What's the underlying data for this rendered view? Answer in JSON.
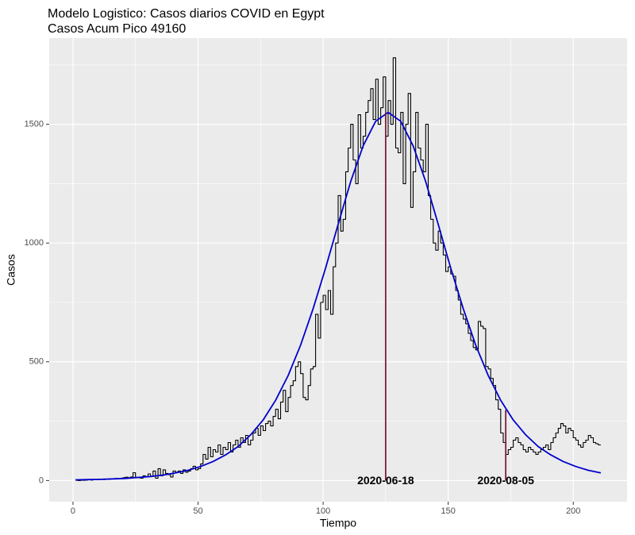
{
  "chart_data": {
    "type": "line",
    "title": "Modelo Logistico: Casos diarios COVID en Egypt",
    "subtitle": "Casos Acum Pico 49160",
    "x_label": "Tiempo",
    "y_label": "Casos",
    "xlim": [
      -9.5,
      221.5
    ],
    "ylim": [
      -89,
      1863
    ],
    "xticks": [
      0,
      50,
      100,
      150,
      200
    ],
    "yticks": [
      0,
      500,
      1000,
      1500
    ],
    "minor_xticks": [
      25,
      75,
      125,
      175
    ],
    "minor_yticks": [
      250,
      750,
      1250,
      1750
    ],
    "grid": true,
    "series": [
      {
        "style": "step",
        "color": "#000000",
        "x": [
          1,
          2,
          3,
          4,
          5,
          6,
          7,
          8,
          9,
          10,
          11,
          12,
          13,
          14,
          15,
          16,
          17,
          18,
          19,
          20,
          21,
          22,
          23,
          24,
          25,
          26,
          27,
          28,
          29,
          30,
          31,
          32,
          33,
          34,
          35,
          36,
          37,
          38,
          39,
          40,
          41,
          42,
          43,
          44,
          45,
          46,
          47,
          48,
          49,
          50,
          51,
          52,
          53,
          54,
          55,
          56,
          57,
          58,
          59,
          60,
          61,
          62,
          63,
          64,
          65,
          66,
          67,
          68,
          69,
          70,
          71,
          72,
          73,
          74,
          75,
          76,
          77,
          78,
          79,
          80,
          81,
          82,
          83,
          84,
          85,
          86,
          87,
          88,
          89,
          90,
          91,
          92,
          93,
          94,
          95,
          96,
          97,
          98,
          99,
          100,
          101,
          102,
          103,
          104,
          105,
          106,
          107,
          108,
          109,
          110,
          111,
          112,
          113,
          114,
          115,
          116,
          117,
          118,
          119,
          120,
          121,
          122,
          123,
          124,
          125,
          126,
          127,
          128,
          129,
          130,
          131,
          132,
          133,
          134,
          135,
          136,
          137,
          138,
          139,
          140,
          141,
          142,
          143,
          144,
          145,
          146,
          147,
          148,
          149,
          150,
          151,
          152,
          153,
          154,
          155,
          156,
          157,
          158,
          159,
          160,
          161,
          162,
          163,
          164,
          165,
          166,
          167,
          168,
          169,
          170,
          171,
          172,
          173,
          174,
          175,
          176,
          177,
          178,
          179,
          180,
          181,
          182,
          183,
          184,
          185,
          186,
          187,
          188,
          189,
          190,
          191,
          192,
          193,
          194,
          195,
          196,
          197,
          198,
          199,
          200,
          201,
          202,
          203,
          204,
          205,
          206,
          207,
          208,
          209,
          210,
          211
        ],
        "values": [
          1,
          0,
          1,
          1,
          2,
          3,
          2,
          3,
          4,
          3,
          5,
          4,
          6,
          5,
          8,
          7,
          9,
          8,
          10,
          12,
          14,
          12,
          15,
          33,
          14,
          12,
          10,
          20,
          15,
          28,
          18,
          40,
          10,
          50,
          20,
          45,
          30,
          25,
          15,
          40,
          35,
          40,
          30,
          45,
          35,
          40,
          50,
          60,
          45,
          50,
          70,
          110,
          90,
          140,
          100,
          130,
          120,
          150,
          110,
          140,
          130,
          160,
          120,
          150,
          170,
          140,
          180,
          160,
          190,
          150,
          170,
          200,
          220,
          190,
          230,
          210,
          240,
          250,
          230,
          270,
          300,
          260,
          330,
          380,
          290,
          350,
          400,
          420,
          480,
          500,
          450,
          350,
          340,
          400,
          470,
          480,
          700,
          600,
          750,
          780,
          720,
          800,
          700,
          900,
          1000,
          1200,
          1050,
          1100,
          1300,
          1400,
          1500,
          1350,
          1250,
          1540,
          1400,
          1450,
          1550,
          1600,
          1650,
          1520,
          1690,
          1500,
          1570,
          1700,
          1450,
          1600,
          1500,
          1780,
          1400,
          1380,
          1550,
          1250,
          1500,
          1630,
          1150,
          1300,
          1550,
          1400,
          1350,
          1300,
          1500,
          1200,
          1100,
          1000,
          970,
          1050,
          1000,
          950,
          880,
          900,
          870,
          860,
          800,
          760,
          700,
          680,
          660,
          620,
          590,
          560,
          550,
          670,
          650,
          640,
          480,
          470,
          430,
          400,
          340,
          300,
          200,
          160,
          110,
          130,
          140,
          170,
          180,
          160,
          150,
          130,
          120,
          140,
          130,
          120,
          110,
          120,
          130,
          140,
          150,
          130,
          160,
          180,
          200,
          220,
          240,
          230,
          200,
          220,
          210,
          180,
          170,
          150,
          140,
          160,
          170,
          190,
          180,
          160,
          155,
          150,
          150
        ]
      },
      {
        "style": "line",
        "color": "#0000cd",
        "x": [
          1,
          6,
          11,
          16,
          21,
          26,
          31,
          36,
          41,
          46,
          51,
          56,
          61,
          66,
          71,
          76,
          81,
          86,
          91,
          96,
          101,
          106,
          111,
          116,
          121,
          126,
          131,
          136,
          141,
          146,
          151,
          156,
          161,
          166,
          171,
          176,
          181,
          186,
          191,
          196,
          201,
          206,
          211
        ],
        "values": [
          3,
          4,
          5,
          7,
          9,
          13,
          17,
          23,
          32,
          43,
          59,
          80,
          108,
          143,
          192,
          255,
          338,
          442,
          570,
          724,
          895,
          1079,
          1259,
          1409,
          1513,
          1550,
          1513,
          1409,
          1259,
          1079,
          895,
          724,
          570,
          442,
          338,
          255,
          192,
          143,
          108,
          80,
          59,
          43,
          32
        ]
      }
    ],
    "annotations": [
      {
        "x": 125,
        "y": 1550,
        "label": "2020-06-18",
        "color": "#7b1e3e"
      },
      {
        "x": 173,
        "y": 297,
        "label": "2020-08-05",
        "color": "#7b1e3e"
      }
    ]
  }
}
